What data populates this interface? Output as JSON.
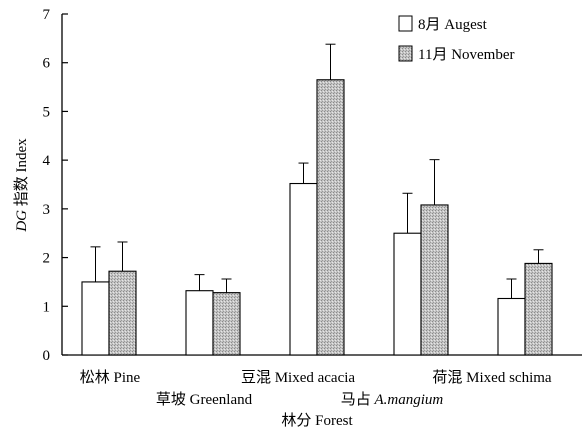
{
  "chart_data": {
    "type": "bar",
    "ylabel_italic": "DG",
    "ylabel_rest": " 指数 Index",
    "xlabel": "林分 Forest",
    "ylim": [
      0,
      7
    ],
    "yticks": [
      0,
      1,
      2,
      3,
      4,
      5,
      6,
      7
    ],
    "legend_position": "top-right",
    "categories": [
      {
        "parts": [
          {
            "text": "松林 Pine",
            "italic": false
          }
        ],
        "row": 1
      },
      {
        "parts": [
          {
            "text": "草坡 Greenland",
            "italic": false
          }
        ],
        "row": 2
      },
      {
        "parts": [
          {
            "text": "豆混 Mixed acacia",
            "italic": false
          }
        ],
        "row": 1
      },
      {
        "parts": [
          {
            "text": "马占 ",
            "italic": false
          },
          {
            "text": "A.mangium",
            "italic": true
          }
        ],
        "row": 2
      },
      {
        "parts": [
          {
            "text": "荷混 Mixed schima",
            "italic": false
          }
        ],
        "row": 1
      }
    ],
    "series": [
      {
        "name": "8月 Augest",
        "values": [
          1.5,
          1.32,
          3.52,
          2.5,
          1.16
        ],
        "errors": [
          0.72,
          0.33,
          0.42,
          0.82,
          0.4
        ],
        "color": "#ffffff"
      },
      {
        "name": "11月 November",
        "values": [
          1.72,
          1.28,
          5.65,
          3.08,
          1.88
        ],
        "errors": [
          0.6,
          0.28,
          0.73,
          0.93,
          0.28
        ],
        "color": "#b8b8b8"
      }
    ]
  }
}
